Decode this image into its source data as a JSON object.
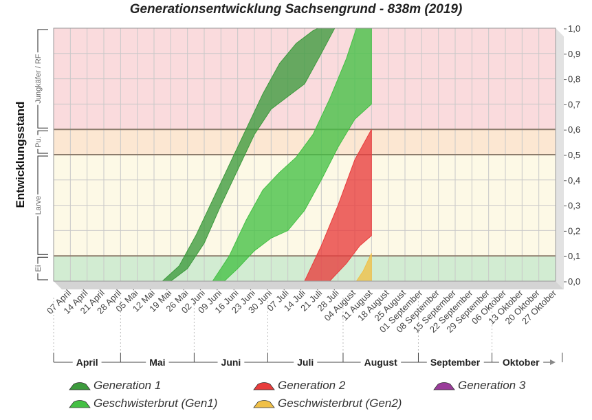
{
  "chart_data": {
    "type": "area",
    "title": "Generationsentwicklung Sachsengrund - 838m (2019)",
    "ylabel": "Entwicklungsstand",
    "ylim": [
      0,
      1
    ],
    "y_ticks": [
      "0,0",
      "0,1",
      "0,2",
      "0,3",
      "0,4",
      "0,5",
      "0,6",
      "0,7",
      "0,8",
      "0,9",
      "1,0"
    ],
    "x_ticks": [
      "07 April",
      "14 April",
      "21 April",
      "28 April",
      "05 Mai",
      "12 Mai",
      "19 Mai",
      "26 Mai",
      "02 Juni",
      "09 Juni",
      "16 Juni",
      "23 Juni",
      "30 Juni",
      "07 Juli",
      "14 Juli",
      "21 Juli",
      "28 Juli",
      "04 August",
      "11 August",
      "18 August",
      "25 August",
      "01 September",
      "08 September",
      "15 September",
      "22 September",
      "29 September",
      "06 Oktober",
      "13 Oktober",
      "20 Oktober",
      "27 Oktober"
    ],
    "months": [
      {
        "label": "April",
        "from": -0.5,
        "to": 3.5
      },
      {
        "label": "Mai",
        "from": 3.5,
        "to": 7.9
      },
      {
        "label": "Juni",
        "from": 7.9,
        "to": 12.3
      },
      {
        "label": "Juli",
        "from": 12.3,
        "to": 16.8
      },
      {
        "label": "August",
        "from": 16.8,
        "to": 21.3
      },
      {
        "label": "September",
        "from": 21.3,
        "to": 25.7
      },
      {
        "label": "Oktober",
        "from": 25.7,
        "to": 29.9
      }
    ],
    "stages": [
      {
        "label": "Ei",
        "from": 0.0,
        "to": 0.1,
        "color": "#d2ecd2"
      },
      {
        "label": "Larve",
        "from": 0.1,
        "to": 0.5,
        "color": "#fdf9e6"
      },
      {
        "label": "Pu.",
        "from": 0.5,
        "to": 0.6,
        "color": "#fce7d2"
      },
      {
        "label": "Jungkäfer / RF",
        "from": 0.6,
        "to": 1.0,
        "color": "#fadbdd"
      }
    ],
    "series": [
      {
        "name": "Generation 1",
        "color": "#3c9a3c",
        "upper": [
          [
            6.0,
            0.0
          ],
          [
            7.0,
            0.06
          ],
          [
            8.0,
            0.18
          ],
          [
            9.0,
            0.32
          ],
          [
            10.0,
            0.46
          ],
          [
            11.0,
            0.6
          ],
          [
            12.0,
            0.74
          ],
          [
            13.0,
            0.86
          ],
          [
            14.0,
            0.94
          ],
          [
            15.0,
            0.99
          ],
          [
            15.3,
            1.0
          ]
        ],
        "lower": [
          [
            6.5,
            0.0
          ],
          [
            7.5,
            0.05
          ],
          [
            8.5,
            0.15
          ],
          [
            9.5,
            0.3
          ],
          [
            10.5,
            0.44
          ],
          [
            11.5,
            0.58
          ],
          [
            12.5,
            0.68
          ],
          [
            13.5,
            0.73
          ],
          [
            14.5,
            0.78
          ],
          [
            15.5,
            0.9
          ],
          [
            16.3,
            1.0
          ]
        ]
      },
      {
        "name": "Geschwisterbrut (Gen1)",
        "color": "#44c044",
        "upper": [
          [
            9.0,
            0.0
          ],
          [
            10.0,
            0.1
          ],
          [
            11.0,
            0.24
          ],
          [
            12.0,
            0.36
          ],
          [
            13.0,
            0.43
          ],
          [
            14.0,
            0.49
          ],
          [
            15.0,
            0.58
          ],
          [
            16.0,
            0.72
          ],
          [
            17.0,
            0.88
          ],
          [
            17.6,
            1.0
          ],
          [
            18.5,
            1.0
          ]
        ],
        "lower": [
          [
            9.7,
            0.0
          ],
          [
            10.5,
            0.05
          ],
          [
            11.5,
            0.12
          ],
          [
            12.5,
            0.17
          ],
          [
            13.5,
            0.2
          ],
          [
            14.5,
            0.28
          ],
          [
            15.5,
            0.4
          ],
          [
            16.5,
            0.53
          ],
          [
            17.5,
            0.64
          ],
          [
            18.5,
            0.7
          ]
        ]
      },
      {
        "name": "Generation 2",
        "color": "#e83c3c",
        "upper": [
          [
            14.5,
            0.0
          ],
          [
            15.5,
            0.14
          ],
          [
            16.5,
            0.3
          ],
          [
            17.5,
            0.48
          ],
          [
            18.5,
            0.6
          ]
        ],
        "lower": [
          [
            16.0,
            0.0
          ],
          [
            17.0,
            0.07
          ],
          [
            17.8,
            0.14
          ],
          [
            18.5,
            0.18
          ]
        ]
      },
      {
        "name": "Generation 3",
        "color": "#9a3c9a",
        "upper": [],
        "lower": []
      },
      {
        "name": "Geschwisterbrut (Gen2)",
        "color": "#f0c048",
        "upper": [
          [
            17.6,
            0.0
          ],
          [
            18.0,
            0.04
          ],
          [
            18.5,
            0.11
          ]
        ],
        "lower": [
          [
            17.8,
            0.0
          ],
          [
            18.5,
            0.0
          ]
        ]
      }
    ],
    "grid": true,
    "legend": "bottom"
  }
}
